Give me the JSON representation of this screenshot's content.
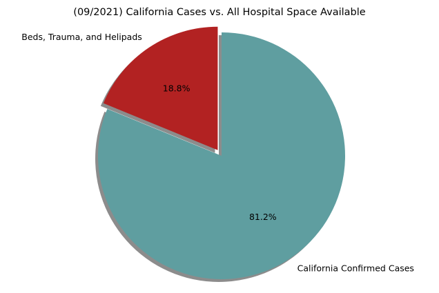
{
  "chart_data": {
    "type": "pie",
    "title": "(09/2021) California Cases vs. All Hospital Space Available",
    "slices": [
      {
        "label": "Beds, Trauma, and Helipads",
        "value": 18.8,
        "pct_label": "18.8%",
        "color": "#b22222",
        "exploded": true
      },
      {
        "label": "California Confirmed Cases",
        "value": 81.2,
        "pct_label": "81.2%",
        "color": "#5f9ea0",
        "exploded": false
      }
    ],
    "start_angle_deg": 90,
    "shadow": true,
    "legend": "none"
  }
}
